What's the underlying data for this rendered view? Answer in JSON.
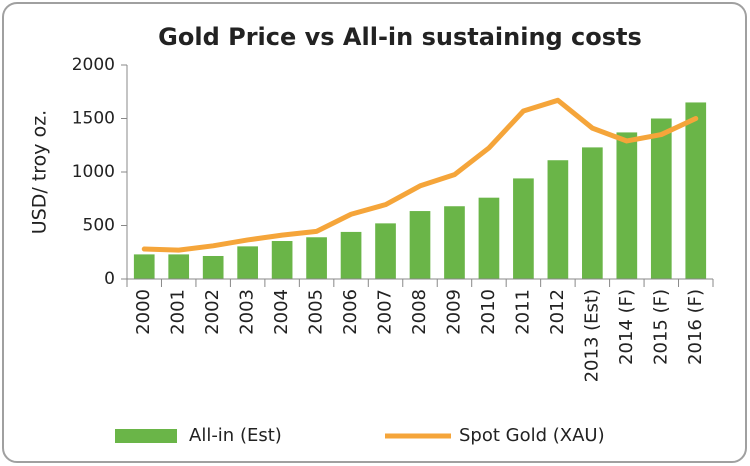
{
  "chart_data": {
    "type": "bar",
    "title": "Gold Price vs All-in sustaining costs",
    "y_label": "USD/ troy oz.",
    "categories": [
      "2000",
      "2001",
      "2002",
      "2003",
      "2004",
      "2005",
      "2006",
      "2007",
      "2008",
      "2009",
      "2010",
      "2011",
      "2012",
      "2013 (Est)",
      "2014 (F)",
      "2015 (F)",
      "2016 (F)"
    ],
    "series": [
      {
        "name": "All-in (Est)",
        "type": "bar",
        "color": "#6ab548",
        "values": [
          230,
          230,
          215,
          305,
          355,
          390,
          440,
          520,
          635,
          680,
          760,
          940,
          1110,
          1230,
          1370,
          1500,
          1650
        ]
      },
      {
        "name": "Spot Gold (XAU)",
        "type": "line",
        "color": "#f5a53a",
        "values": [
          280,
          270,
          310,
          365,
          410,
          445,
          605,
          695,
          870,
          975,
          1225,
          1570,
          1670,
          1410,
          1290,
          1350,
          1500
        ]
      }
    ],
    "ylim": [
      0,
      2000
    ],
    "yticks": [
      0,
      500,
      1000,
      1500,
      2000
    ],
    "grid": false,
    "legend": "bottom"
  }
}
